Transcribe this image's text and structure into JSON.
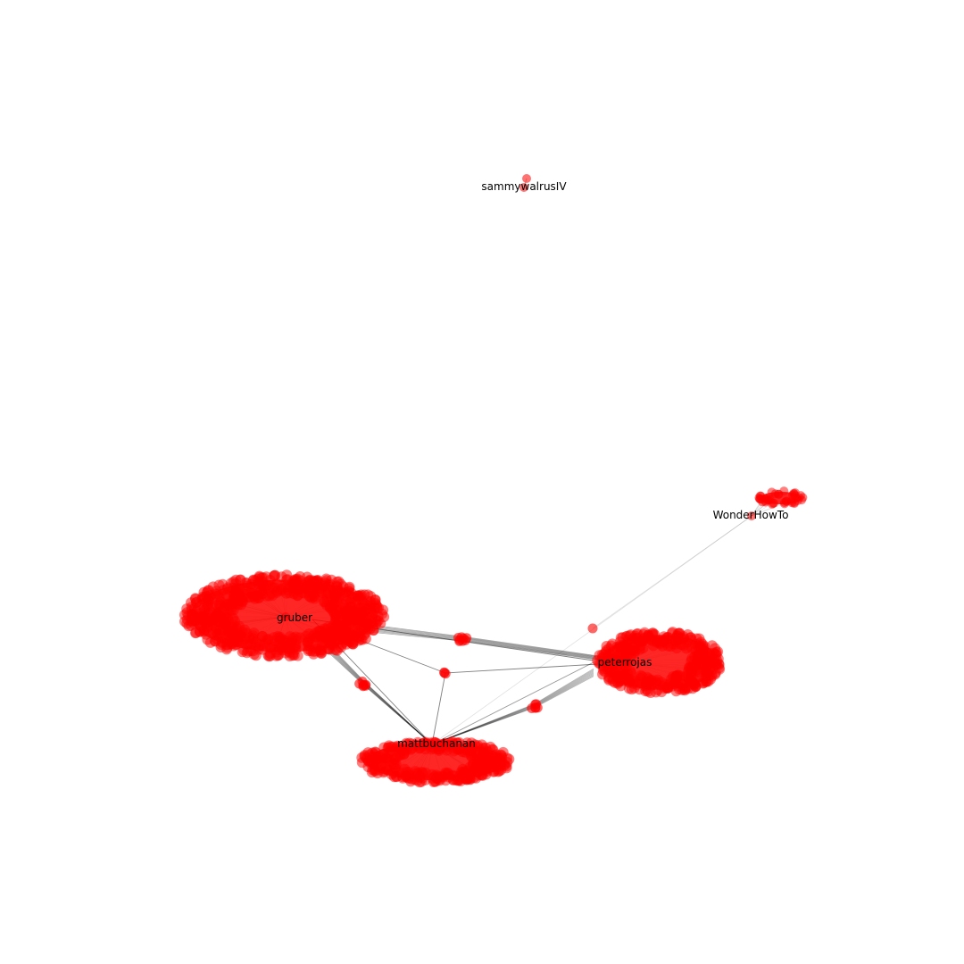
{
  "colors": {
    "background": "#ffffff",
    "node": "#ff0000",
    "edge": "#000000",
    "label": "#000000"
  },
  "graph": {
    "type": "network",
    "hubs": [
      {
        "id": "gruber",
        "label": "gruber"
      },
      {
        "id": "peterrojas",
        "label": "peterrojas"
      },
      {
        "id": "mattbuchanan",
        "label": "mattbuchanan"
      },
      {
        "id": "WonderHowTo",
        "label": "WonderHowTo"
      },
      {
        "id": "sammywalrusIV",
        "label": "sammywalrusIV"
      }
    ],
    "bridges": [
      {
        "id": "bridge-gruber-peterrojas"
      },
      {
        "id": "bridge-gruber-mattbuchanan"
      },
      {
        "id": "bridge-peterrojas-mattbuchanan"
      },
      {
        "id": "bridge-center"
      },
      {
        "id": "bridge-isolated"
      }
    ]
  }
}
